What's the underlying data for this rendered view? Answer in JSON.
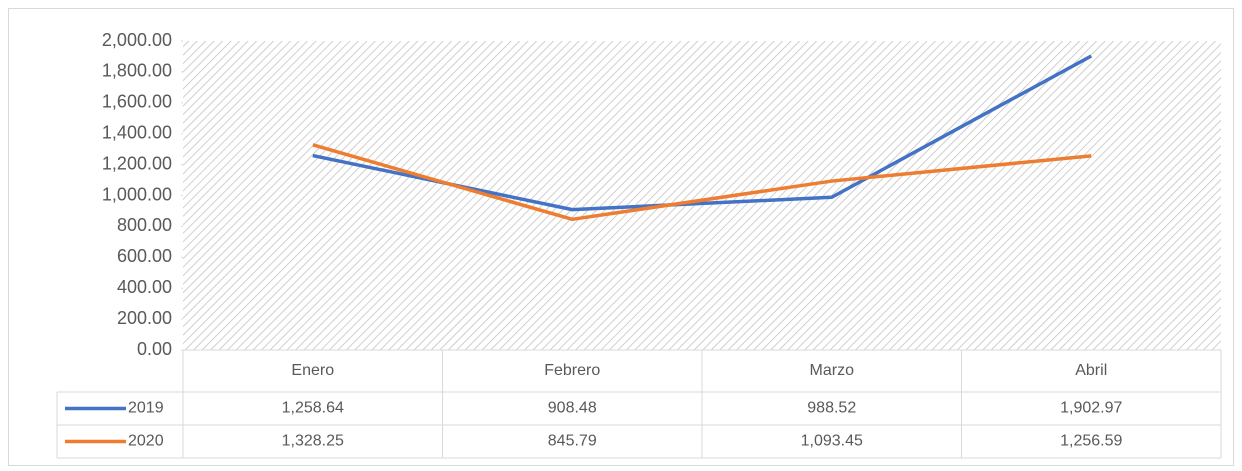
{
  "chart_data": {
    "type": "line",
    "categories": [
      "Enero",
      "Febrero",
      "Marzo",
      "Abril"
    ],
    "series": [
      {
        "name": "2019",
        "color": "#4472c4",
        "values": [
          1258.64,
          908.48,
          988.52,
          1902.97
        ],
        "value_labels": [
          "1,258.64",
          "908.48",
          "988.52",
          "1,902.97"
        ]
      },
      {
        "name": "2020",
        "color": "#ed7d31",
        "values": [
          1328.25,
          845.79,
          1093.45,
          1256.59
        ],
        "value_labels": [
          "1,328.25",
          "845.79",
          "1,093.45",
          "1,256.59"
        ]
      }
    ],
    "ylim": [
      0,
      2000
    ],
    "yticks": [
      {
        "value": 0,
        "label": "0.00"
      },
      {
        "value": 200,
        "label": "200.00"
      },
      {
        "value": 400,
        "label": "400.00"
      },
      {
        "value": 600,
        "label": "600.00"
      },
      {
        "value": 800,
        "label": "800.00"
      },
      {
        "value": 1000,
        "label": "1,000.00"
      },
      {
        "value": 1200,
        "label": "1,200.00"
      },
      {
        "value": 1400,
        "label": "1,400.00"
      },
      {
        "value": 1600,
        "label": "1,600.00"
      },
      {
        "value": 1800,
        "label": "1,800.00"
      },
      {
        "value": 2000,
        "label": "2,000.00"
      }
    ]
  }
}
